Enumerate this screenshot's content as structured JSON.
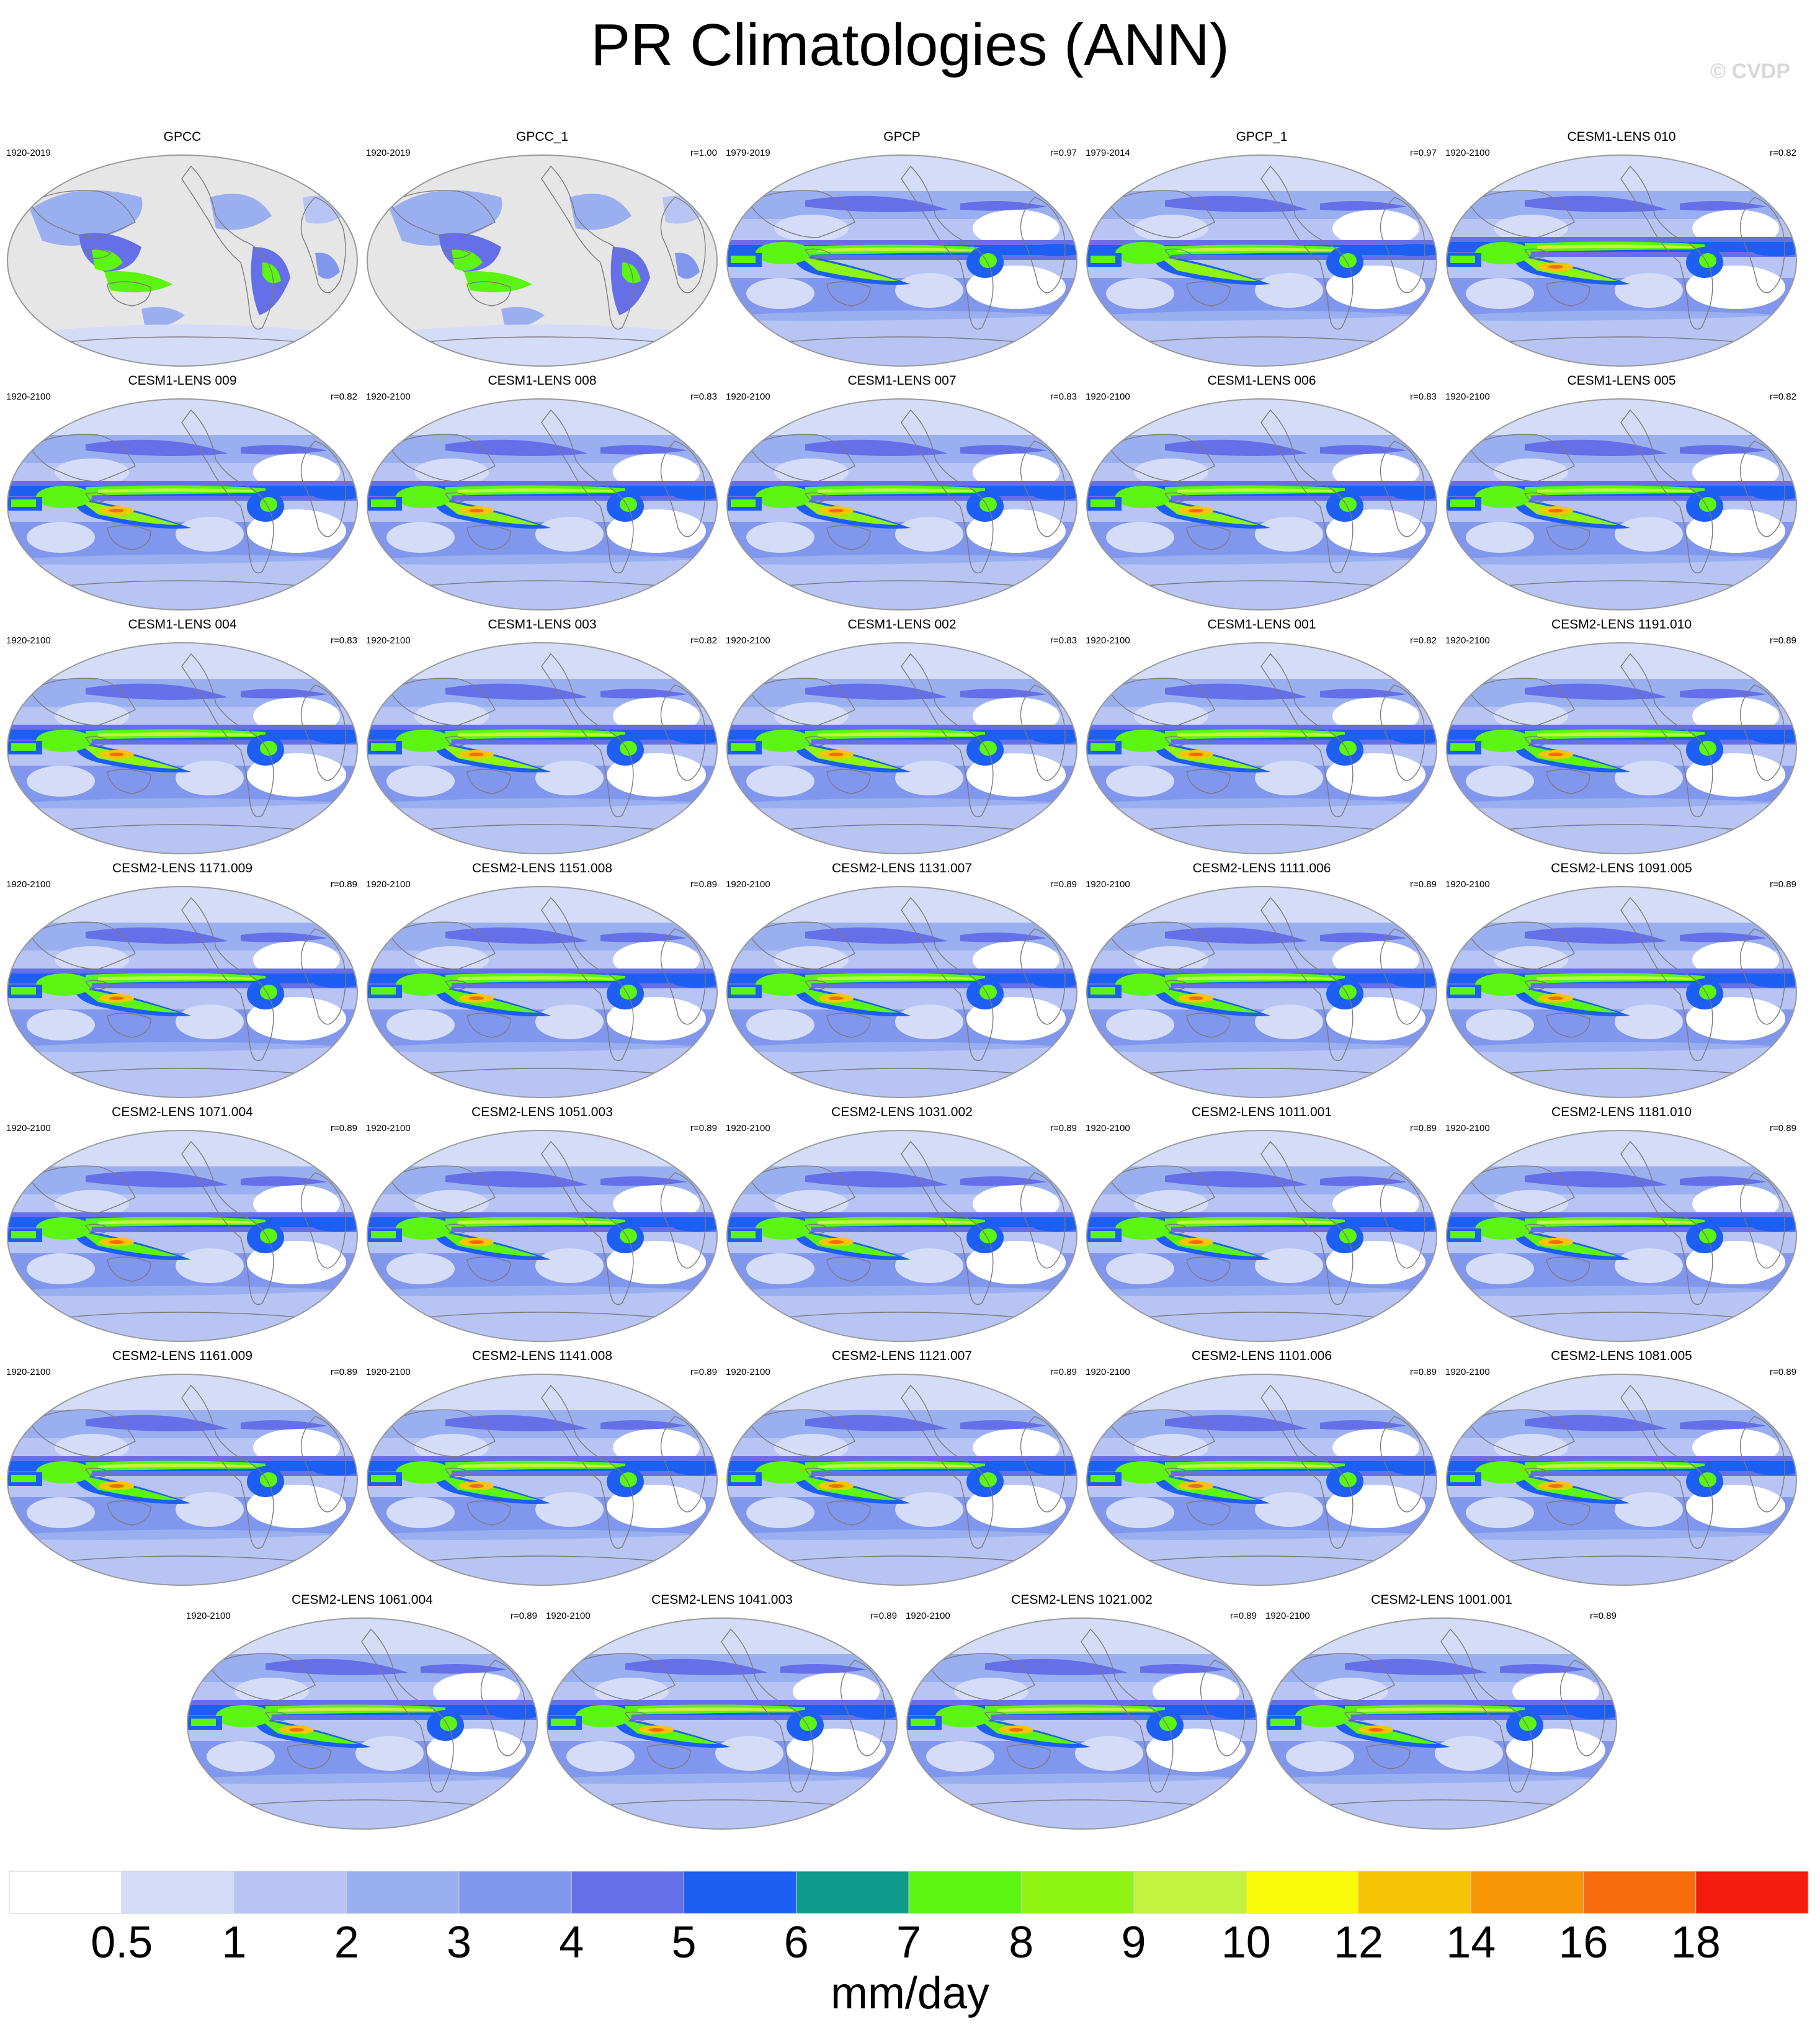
{
  "figure": {
    "title": "PR Climatologies (ANN)",
    "credit": "© CVDP"
  },
  "panels": [
    {
      "name": "GPCC",
      "period": "1920-2019",
      "corr": "",
      "kind": "land"
    },
    {
      "name": "GPCC_1",
      "period": "1920-2019",
      "corr": "r=1.00",
      "kind": "land"
    },
    {
      "name": "GPCP",
      "period": "1979-2019",
      "corr": "r=0.97",
      "kind": "obs"
    },
    {
      "name": "GPCP_1",
      "period": "1979-2014",
      "corr": "r=0.97",
      "kind": "obs"
    },
    {
      "name": "CESM1-LENS 010",
      "period": "1920-2100",
      "corr": "r=0.82",
      "kind": "cesm1"
    },
    {
      "name": "CESM1-LENS 009",
      "period": "1920-2100",
      "corr": "r=0.82",
      "kind": "cesm1"
    },
    {
      "name": "CESM1-LENS 008",
      "period": "1920-2100",
      "corr": "r=0.83",
      "kind": "cesm1"
    },
    {
      "name": "CESM1-LENS 007",
      "period": "1920-2100",
      "corr": "r=0.83",
      "kind": "cesm1"
    },
    {
      "name": "CESM1-LENS 006",
      "period": "1920-2100",
      "corr": "r=0.83",
      "kind": "cesm1"
    },
    {
      "name": "CESM1-LENS 005",
      "period": "1920-2100",
      "corr": "r=0.82",
      "kind": "cesm1"
    },
    {
      "name": "CESM1-LENS 004",
      "period": "1920-2100",
      "corr": "r=0.83",
      "kind": "cesm1"
    },
    {
      "name": "CESM1-LENS 003",
      "period": "1920-2100",
      "corr": "r=0.82",
      "kind": "cesm1"
    },
    {
      "name": "CESM1-LENS 002",
      "period": "1920-2100",
      "corr": "r=0.83",
      "kind": "cesm1"
    },
    {
      "name": "CESM1-LENS 001",
      "period": "1920-2100",
      "corr": "r=0.82",
      "kind": "cesm1"
    },
    {
      "name": "CESM2-LENS 1191.010",
      "period": "1920-2100",
      "corr": "r=0.89",
      "kind": "cesm2"
    },
    {
      "name": "CESM2-LENS 1171.009",
      "period": "1920-2100",
      "corr": "r=0.89",
      "kind": "cesm2"
    },
    {
      "name": "CESM2-LENS 1151.008",
      "period": "1920-2100",
      "corr": "r=0.89",
      "kind": "cesm2"
    },
    {
      "name": "CESM2-LENS 1131.007",
      "period": "1920-2100",
      "corr": "r=0.89",
      "kind": "cesm2"
    },
    {
      "name": "CESM2-LENS 1111.006",
      "period": "1920-2100",
      "corr": "r=0.89",
      "kind": "cesm2"
    },
    {
      "name": "CESM2-LENS 1091.005",
      "period": "1920-2100",
      "corr": "r=0.89",
      "kind": "cesm2"
    },
    {
      "name": "CESM2-LENS 1071.004",
      "period": "1920-2100",
      "corr": "r=0.89",
      "kind": "cesm2"
    },
    {
      "name": "CESM2-LENS 1051.003",
      "period": "1920-2100",
      "corr": "r=0.89",
      "kind": "cesm2"
    },
    {
      "name": "CESM2-LENS 1031.002",
      "period": "1920-2100",
      "corr": "r=0.89",
      "kind": "cesm2"
    },
    {
      "name": "CESM2-LENS 1011.001",
      "period": "1920-2100",
      "corr": "r=0.89",
      "kind": "cesm2"
    },
    {
      "name": "CESM2-LENS 1181.010",
      "period": "1920-2100",
      "corr": "r=0.89",
      "kind": "cesm2"
    },
    {
      "name": "CESM2-LENS 1161.009",
      "period": "1920-2100",
      "corr": "r=0.89",
      "kind": "cesm2"
    },
    {
      "name": "CESM2-LENS 1141.008",
      "period": "1920-2100",
      "corr": "r=0.89",
      "kind": "cesm2"
    },
    {
      "name": "CESM2-LENS 1121.007",
      "period": "1920-2100",
      "corr": "r=0.89",
      "kind": "cesm2"
    },
    {
      "name": "CESM2-LENS 1101.006",
      "period": "1920-2100",
      "corr": "r=0.89",
      "kind": "cesm2"
    },
    {
      "name": "CESM2-LENS 1081.005",
      "period": "1920-2100",
      "corr": "r=0.89",
      "kind": "cesm2"
    },
    {
      "name": "CESM2-LENS 1061.004",
      "period": "1920-2100",
      "corr": "r=0.89",
      "kind": "cesm2"
    },
    {
      "name": "CESM2-LENS 1041.003",
      "period": "1920-2100",
      "corr": "r=0.89",
      "kind": "cesm2"
    },
    {
      "name": "CESM2-LENS 1021.002",
      "period": "1920-2100",
      "corr": "r=0.89",
      "kind": "cesm2"
    },
    {
      "name": "CESM2-LENS 1001.001",
      "period": "1920-2100",
      "corr": "r=0.89",
      "kind": "cesm2"
    }
  ],
  "colorbar": {
    "levels": [
      "0.5",
      "1",
      "2",
      "3",
      "4",
      "5",
      "6",
      "7",
      "8",
      "9",
      "10",
      "12",
      "14",
      "16",
      "18"
    ],
    "colors": [
      "#ffffff",
      "#d4dcf7",
      "#b7c4f4",
      "#9aafef",
      "#8097ed",
      "#6570e8",
      "#1c5ff2",
      "#0e9a8d",
      "#5cf512",
      "#8ef411",
      "#c2f43f",
      "#f9f90a",
      "#f8c405",
      "#f79607",
      "#f66b0b",
      "#f41d0d"
    ],
    "units": "mm/day"
  },
  "map_colors": {
    "land_missing": "#e6e6e6",
    "coastline": "#7a7a7a",
    "frame": "#999999"
  }
}
